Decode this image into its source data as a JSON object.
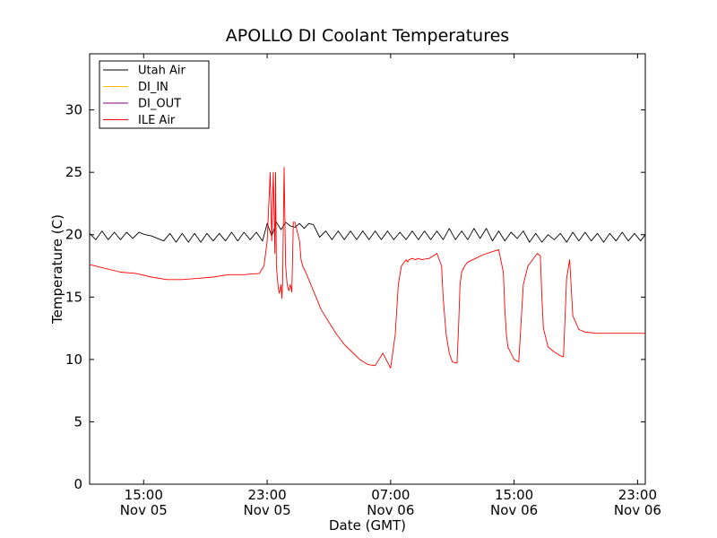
{
  "chart_data": {
    "type": "line",
    "title": "APOLLO DI Coolant Temperatures",
    "xlabel": "Date (GMT)",
    "ylabel": "Temperature (C)",
    "xlim": [
      11.5,
      47.5
    ],
    "ylim": [
      0,
      34.5
    ],
    "yticks": [
      0,
      5,
      10,
      15,
      20,
      25,
      30
    ],
    "xticks": [
      {
        "value": 15,
        "line1": "15:00",
        "line2": "Nov 05"
      },
      {
        "value": 23,
        "line1": "23:00",
        "line2": "Nov 05"
      },
      {
        "value": 31,
        "line1": "07:00",
        "line2": "Nov 06"
      },
      {
        "value": 39,
        "line1": "15:00",
        "line2": "Nov 06"
      },
      {
        "value": 47,
        "line1": "23:00",
        "line2": "Nov 06"
      }
    ],
    "legend": {
      "position": "upper-left"
    },
    "series": [
      {
        "name": "Utah Air",
        "color": "#000000",
        "x": [
          11.5,
          11.9,
          12.3,
          12.7,
          13.1,
          13.5,
          13.9,
          14.3,
          14.7,
          15.1,
          15.5,
          15.9,
          16.3,
          16.7,
          17.1,
          17.5,
          17.9,
          18.3,
          18.7,
          19.1,
          19.5,
          19.9,
          20.3,
          20.7,
          21.1,
          21.5,
          21.9,
          22.3,
          22.7,
          23.0,
          23.3,
          23.6,
          23.9,
          24.2,
          24.5,
          24.8,
          25.1,
          25.4,
          25.7,
          26.0,
          26.4,
          26.8,
          27.2,
          27.6,
          28.0,
          28.4,
          28.8,
          29.2,
          29.6,
          30.0,
          30.4,
          30.8,
          31.2,
          31.6,
          32.0,
          32.4,
          32.8,
          33.2,
          33.6,
          34.0,
          34.4,
          34.8,
          35.2,
          35.6,
          36.0,
          36.4,
          36.8,
          37.2,
          37.6,
          38.0,
          38.4,
          38.8,
          39.2,
          39.6,
          40.0,
          40.4,
          40.8,
          41.2,
          41.6,
          42.0,
          42.4,
          42.8,
          43.2,
          43.6,
          44.0,
          44.4,
          44.8,
          45.2,
          45.6,
          46.0,
          46.4,
          46.8,
          47.2,
          47.5
        ],
        "y": [
          20.1,
          19.6,
          20.3,
          19.6,
          20.2,
          19.6,
          20.2,
          19.7,
          20.2,
          20.0,
          19.9,
          19.7,
          19.5,
          20.1,
          19.4,
          20.1,
          19.4,
          20.1,
          19.4,
          20.1,
          19.5,
          20.1,
          19.5,
          20.2,
          19.5,
          20.2,
          19.6,
          20.2,
          19.5,
          20.9,
          19.9,
          21.0,
          20.4,
          21.0,
          20.7,
          20.6,
          20.9,
          20.5,
          20.9,
          20.8,
          19.8,
          20.3,
          19.6,
          20.3,
          19.6,
          20.3,
          19.6,
          20.3,
          19.6,
          20.3,
          19.6,
          20.3,
          19.6,
          20.2,
          19.6,
          20.3,
          19.6,
          20.3,
          19.6,
          20.3,
          19.6,
          20.5,
          19.6,
          20.3,
          19.6,
          20.5,
          19.7,
          20.5,
          19.5,
          20.3,
          19.5,
          20.2,
          19.7,
          20.3,
          19.4,
          20.1,
          19.4,
          20.0,
          19.6,
          20.1,
          19.4,
          20.2,
          19.5,
          20.2,
          19.5,
          20.1,
          19.4,
          20.1,
          19.5,
          20.2,
          19.5,
          20.1,
          19.5,
          20.0
        ]
      },
      {
        "name": "DI_IN",
        "color": "#ffbf00",
        "x": [],
        "y": []
      },
      {
        "name": "DI_OUT",
        "color": "#800080",
        "x": [],
        "y": []
      },
      {
        "name": "ILE Air",
        "color": "#ff0000",
        "x": [
          11.5,
          12.5,
          13.5,
          14.5,
          15.5,
          16.5,
          17.5,
          18.5,
          19.5,
          20.5,
          21.5,
          22.5,
          22.8,
          23.0,
          23.2,
          23.3,
          23.4,
          23.5,
          23.55,
          23.6,
          23.7,
          23.75,
          23.8,
          23.9,
          23.95,
          24.0,
          24.1,
          24.2,
          24.3,
          24.4,
          24.5,
          24.6,
          24.7,
          24.8,
          24.9,
          25.0,
          25.1,
          25.2,
          25.3,
          25.5,
          26.0,
          26.5,
          27.0,
          27.5,
          28.0,
          28.5,
          29.0,
          29.5,
          30.0,
          30.5,
          31.0,
          31.3,
          31.5,
          31.7,
          31.9,
          32.0,
          32.1,
          32.2,
          32.4,
          32.6,
          32.8,
          33.0,
          33.5,
          34.0,
          34.3,
          34.4,
          34.6,
          34.8,
          35.0,
          35.3,
          35.4,
          35.5,
          35.6,
          35.8,
          36.0,
          36.5,
          37.0,
          37.5,
          38.0,
          38.3,
          38.4,
          38.5,
          38.6,
          38.8,
          39.0,
          39.3,
          39.6,
          39.9,
          40.2,
          40.5,
          40.7,
          40.8,
          40.9,
          41.2,
          41.6,
          42.0,
          42.2,
          42.4,
          42.6,
          42.8,
          43.2,
          43.6,
          44.0,
          44.3,
          44.4,
          44.5,
          44.7,
          44.9,
          45.0,
          45.2,
          45.5,
          46.0,
          46.5,
          47.0,
          47.5
        ],
        "y": [
          17.6,
          17.3,
          17.0,
          16.9,
          16.6,
          16.4,
          16.4,
          16.5,
          16.6,
          16.8,
          16.8,
          16.9,
          17.5,
          19.5,
          25.0,
          19.5,
          25.0,
          18.5,
          25.0,
          17.5,
          16.0,
          15.5,
          15.3,
          16.0,
          14.9,
          16.0,
          25.4,
          17.5,
          16.0,
          15.5,
          16.0,
          15.4,
          21.0,
          21.0,
          20.5,
          20.0,
          19.5,
          18.0,
          17.5,
          17.0,
          15.5,
          14.0,
          13.0,
          12.0,
          11.2,
          10.6,
          10.0,
          9.6,
          9.5,
          10.5,
          9.3,
          12.0,
          16.0,
          17.5,
          17.8,
          18.0,
          17.8,
          18.0,
          18.1,
          18.0,
          18.1,
          18.0,
          18.1,
          18.5,
          17.5,
          15.0,
          12.0,
          10.5,
          9.8,
          9.7,
          12.5,
          16.0,
          17.0,
          17.5,
          17.8,
          18.1,
          18.4,
          18.6,
          18.8,
          17.0,
          14.0,
          12.0,
          11.0,
          10.5,
          10.0,
          9.8,
          16.0,
          17.5,
          18.0,
          18.5,
          18.3,
          15.0,
          12.5,
          11.0,
          10.6,
          10.3,
          10.2,
          16.5,
          18.0,
          13.5,
          12.4,
          12.2,
          12.15,
          12.1,
          12.1,
          12.1,
          12.1,
          12.1,
          12.1,
          12.1,
          12.1,
          12.1,
          12.1,
          12.1,
          12.1
        ]
      }
    ]
  }
}
